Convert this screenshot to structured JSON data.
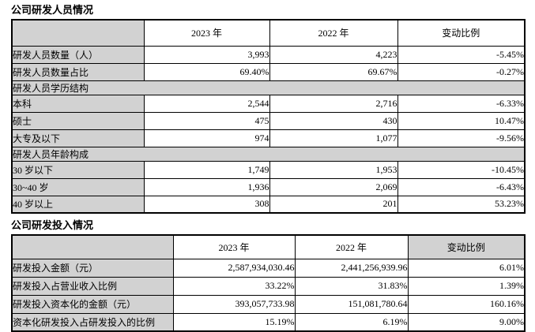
{
  "sections": {
    "personnel_title": "公司研发人员情况",
    "investment_title": "公司研发投入情况"
  },
  "table1": {
    "headers": [
      "",
      "2023 年",
      "2022 年",
      "变动比例"
    ],
    "rows": [
      {
        "type": "data",
        "label": "研发人员数量（人）",
        "y2023": "3,993",
        "y2022": "4,223",
        "change": "-5.45%"
      },
      {
        "type": "data",
        "label": "研发人员数量占比",
        "y2023": "69.40%",
        "y2022": "69.67%",
        "change": "-0.27%"
      },
      {
        "type": "section",
        "label": "研发人员学历结构"
      },
      {
        "type": "data",
        "label": "本科",
        "y2023": "2,544",
        "y2022": "2,716",
        "change": "-6.33%"
      },
      {
        "type": "data",
        "label": "硕士",
        "y2023": "475",
        "y2022": "430",
        "change": "10.47%"
      },
      {
        "type": "data",
        "label": "大专及以下",
        "y2023": "974",
        "y2022": "1,077",
        "change": "-9.56%"
      },
      {
        "type": "section",
        "label": "研发人员年龄构成"
      },
      {
        "type": "data",
        "label": "30 岁以下",
        "y2023": "1,749",
        "y2022": "1,953",
        "change": "-10.45%"
      },
      {
        "type": "data",
        "label": "30~40 岁",
        "y2023": "1,936",
        "y2022": "2,069",
        "change": "-6.43%"
      },
      {
        "type": "data",
        "label": "40 岁以上",
        "y2023": "308",
        "y2022": "201",
        "change": "53.23%"
      }
    ]
  },
  "table2": {
    "headers": [
      "",
      "2023 年",
      "2022 年",
      "变动比例"
    ],
    "rows": [
      {
        "type": "data",
        "label": "研发投入金额（元）",
        "y2023": "2,587,934,030.46",
        "y2022": "2,441,256,939.96",
        "change": "6.01%"
      },
      {
        "type": "data",
        "label": "研发投入占营业收入比例",
        "y2023": "33.22%",
        "y2022": "31.83%",
        "change": "1.39%"
      },
      {
        "type": "data",
        "label": "研发投入资本化的金额（元）",
        "y2023": "393,057,733.98",
        "y2022": "151,081,780.64",
        "change": "160.16%"
      },
      {
        "type": "data",
        "label": "资本化研发投入占研发投入的比例",
        "y2023": "15.19%",
        "y2022": "6.19%",
        "change": "9.00%"
      }
    ]
  },
  "colors": {
    "cell_shading": "#d2d2d2",
    "border": "#000000",
    "text": "#000000"
  }
}
